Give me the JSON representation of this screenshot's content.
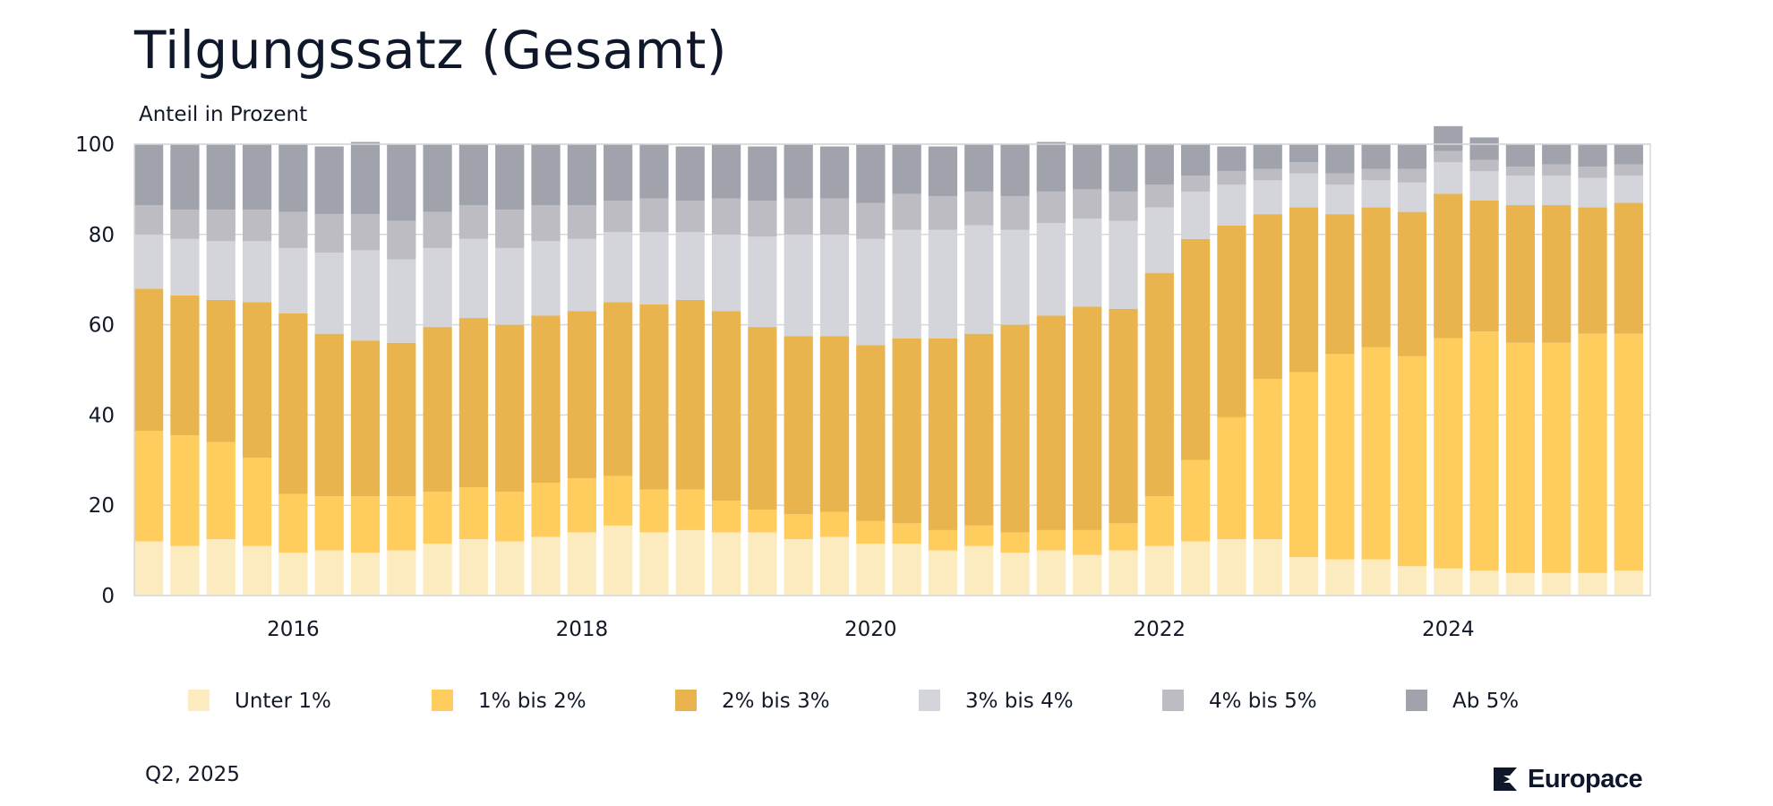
{
  "header": {
    "title": "Tilgungssatz (Gesamt)",
    "subtitle": "Anteil in Prozent"
  },
  "footer": {
    "date_label": "Q2, 2025",
    "brand": "Europace"
  },
  "colors": {
    "unter1": "#fdebc0",
    "b1_2": "#fecd5e",
    "b2_3": "#e9b44e",
    "b3_4": "#d4d5da",
    "b4_5": "#bcbcc2",
    "ab5": "#a1a3ac",
    "grid": "#d8d8d8",
    "axis_text": "#111827",
    "brand": "#0f172a"
  },
  "chart_data": {
    "type": "bar",
    "stacked": true,
    "ylim": [
      0,
      100
    ],
    "yticks": [
      0,
      20,
      40,
      60,
      80,
      100
    ],
    "xticks": [
      "2016",
      "2018",
      "2020",
      "2022",
      "2024"
    ],
    "xtick_periods": [
      "2016-Q1",
      "2018-Q1",
      "2020-Q1",
      "2022-Q1",
      "2024-Q1"
    ],
    "grid": true,
    "legend_position": "bottom",
    "categories": [
      "2015-Q1",
      "2015-Q2",
      "2015-Q3",
      "2015-Q4",
      "2016-Q1",
      "2016-Q2",
      "2016-Q3",
      "2016-Q4",
      "2017-Q1",
      "2017-Q2",
      "2017-Q3",
      "2017-Q4",
      "2018-Q1",
      "2018-Q2",
      "2018-Q3",
      "2018-Q4",
      "2019-Q1",
      "2019-Q2",
      "2019-Q3",
      "2019-Q4",
      "2020-Q1",
      "2020-Q2",
      "2020-Q3",
      "2020-Q4",
      "2021-Q1",
      "2021-Q2",
      "2021-Q3",
      "2021-Q4",
      "2022-Q1",
      "2022-Q2",
      "2022-Q3",
      "2022-Q4",
      "2023-Q1",
      "2023-Q2",
      "2023-Q3",
      "2023-Q4",
      "2024-Q1",
      "2024-Q2",
      "2024-Q3",
      "2024-Q4",
      "2025-Q1",
      "2025-Q2"
    ],
    "series": [
      {
        "name": "Unter 1%",
        "color_key": "unter1",
        "values": [
          12,
          11,
          12.5,
          11,
          9.5,
          10,
          9.5,
          10,
          11.5,
          12.5,
          12,
          13,
          14,
          15.5,
          14,
          14.5,
          14,
          14,
          12.5,
          13,
          11.5,
          11.5,
          10,
          11,
          9.5,
          10,
          9,
          10,
          11,
          12,
          12.5,
          12.5,
          8.5,
          8,
          8,
          6.5,
          6,
          5.5,
          5,
          5,
          5,
          5.5
        ]
      },
      {
        "name": "1% bis 2%",
        "color_key": "b1_2",
        "values": [
          24.5,
          24.5,
          21.5,
          19.5,
          13,
          12,
          12.5,
          12,
          11.5,
          11.5,
          11,
          12,
          12,
          11,
          9.5,
          9,
          7,
          5,
          5.5,
          5.5,
          5,
          4.5,
          4.5,
          4.5,
          4.5,
          4.5,
          5.5,
          6,
          11,
          18,
          27,
          35.5,
          41,
          45.5,
          47,
          46.5,
          51,
          53,
          51,
          51,
          53,
          52.5
        ]
      },
      {
        "name": "2% bis 3%",
        "color_key": "b2_3",
        "values": [
          31.5,
          31,
          31.5,
          34.5,
          40,
          36,
          34.5,
          34,
          36.5,
          37.5,
          37,
          37,
          37,
          38.5,
          41,
          42,
          42,
          40.5,
          39.5,
          39,
          39,
          41,
          42.5,
          42.5,
          46,
          47.5,
          49.5,
          47.5,
          49.5,
          49,
          42.5,
          36.5,
          36.5,
          31,
          31,
          32,
          32,
          29,
          30.5,
          30.5,
          28,
          29
        ]
      },
      {
        "name": "3% bis 4%",
        "color_key": "b3_4",
        "values": [
          12,
          12.5,
          13,
          13.5,
          14.5,
          18,
          20,
          18.5,
          17.5,
          17.5,
          17,
          16.5,
          16,
          15.5,
          16,
          15,
          17,
          20,
          22.5,
          22.5,
          23.5,
          24,
          24,
          24,
          21,
          20.5,
          19.5,
          19.5,
          14.5,
          10.5,
          9,
          7.5,
          7.5,
          6.5,
          6,
          6.5,
          7,
          6.5,
          6.5,
          6.5,
          6.5,
          6
        ]
      },
      {
        "name": "4% bis 5%",
        "color_key": "b4_5",
        "values": [
          6.5,
          6.5,
          7,
          7,
          8,
          8.5,
          8,
          8.5,
          8,
          7.5,
          8.5,
          8,
          7.5,
          7,
          7.5,
          7,
          8,
          8,
          8,
          8,
          8,
          8,
          7.5,
          7.5,
          7.5,
          7,
          6.5,
          6.5,
          5,
          3.5,
          3,
          2.5,
          2.5,
          2.5,
          2.5,
          3,
          2.5,
          2.5,
          2,
          2.5,
          2.5,
          2.5
        ]
      },
      {
        "name": "Ab 5%",
        "color_key": "ab5",
        "values": [
          13.5,
          14.5,
          14.5,
          14.5,
          15,
          15,
          16,
          17,
          15,
          13.5,
          14.5,
          13.5,
          13.5,
          12.5,
          12,
          12,
          12,
          12,
          12,
          11.5,
          13,
          11,
          11,
          10.5,
          11.5,
          11,
          10,
          10.5,
          9,
          7,
          5.5,
          5.5,
          4,
          6.5,
          5.5,
          5.5,
          5.5,
          5,
          5,
          4.5,
          5,
          4.5
        ]
      }
    ]
  }
}
